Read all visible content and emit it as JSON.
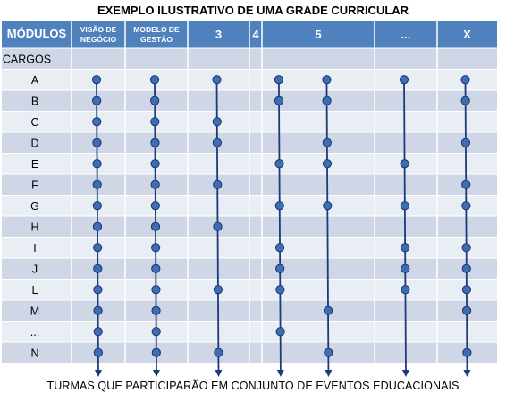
{
  "title": "EXEMPLO ILUSTRATIVO DE UMA GRADE CURRICULAR",
  "header": {
    "corner_label": "MÓDULOS",
    "modules": [
      {
        "id": "visao",
        "label_lines": [
          "VISÃO DE",
          "NEGÓCIO"
        ]
      },
      {
        "id": "modelo",
        "label_lines": [
          "MODELO DE",
          "GESTÃO"
        ]
      },
      {
        "id": "m3",
        "label_lines": [
          "3"
        ]
      },
      {
        "id": "m4",
        "label_lines": [
          "4"
        ]
      },
      {
        "id": "m5",
        "label_lines": [
          "5"
        ]
      },
      {
        "id": "etc",
        "label_lines": [
          "..."
        ]
      },
      {
        "id": "x",
        "label_lines": [
          "X"
        ]
      }
    ]
  },
  "cargos_label": "CARGOS",
  "rows": [
    "A",
    "B",
    "C",
    "D",
    "E",
    "F",
    "G",
    "H",
    "I",
    "J",
    "L",
    "M",
    "...",
    "N"
  ],
  "line_tracks": [
    {
      "col": "visao",
      "offset": 0
    },
    {
      "col": "modelo",
      "offset": 0
    },
    {
      "col": "m3",
      "offset": 0
    },
    {
      "col": "m5",
      "offset": -0.7
    },
    {
      "col": "m5",
      "offset": 0.15
    },
    {
      "col": "etc",
      "offset": 0
    },
    {
      "col": "x",
      "offset": 0
    }
  ],
  "dots": [
    [
      1,
      1,
      1,
      1,
      1,
      1,
      1
    ],
    [
      1,
      1,
      0,
      1,
      1,
      0,
      1
    ],
    [
      1,
      1,
      1,
      0,
      0,
      0,
      0
    ],
    [
      1,
      1,
      1,
      0,
      1,
      0,
      1
    ],
    [
      1,
      1,
      0,
      1,
      1,
      1,
      0
    ],
    [
      1,
      1,
      1,
      0,
      0,
      0,
      1
    ],
    [
      1,
      1,
      0,
      1,
      1,
      1,
      1
    ],
    [
      1,
      1,
      1,
      0,
      0,
      0,
      0
    ],
    [
      1,
      1,
      0,
      1,
      0,
      1,
      1
    ],
    [
      1,
      1,
      0,
      1,
      0,
      1,
      1
    ],
    [
      1,
      1,
      1,
      1,
      0,
      1,
      1
    ],
    [
      1,
      1,
      0,
      0,
      1,
      0,
      1
    ],
    [
      1,
      1,
      0,
      1,
      0,
      0,
      0
    ],
    [
      1,
      1,
      1,
      0,
      1,
      0,
      1
    ]
  ],
  "caption": "TURMAS QUE PARTICIPARÃO EM CONJUNTO DE EVENTOS EDUCACIONAIS",
  "colors": {
    "header_bg": "#4f81bd",
    "header_text": "#ffffff",
    "row_a": "#cfd7e7",
    "row_b": "#e9edf4",
    "line": "#1f3a7a",
    "dot_fill": "#3e6db3",
    "dot_stroke": "#1c3570"
  }
}
